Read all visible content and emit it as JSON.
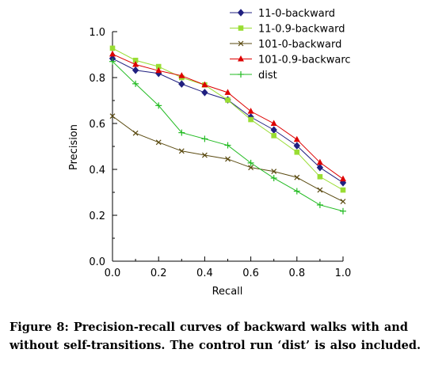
{
  "chart_data": {
    "type": "line",
    "xlabel": "Recall",
    "ylabel": "Precision",
    "xlim": [
      0,
      1
    ],
    "ylim": [
      0,
      1
    ],
    "x_ticks": [
      "0.0",
      "0.2",
      "0.4",
      "0.6",
      "0.8",
      "1.0"
    ],
    "y_ticks": [
      "0.0",
      "0.2",
      "0.4",
      "0.6",
      "0.8",
      "1.0"
    ],
    "grid": false,
    "legend_position": "top-right",
    "x": [
      0,
      0.1,
      0.2,
      0.3,
      0.4,
      0.5,
      0.6,
      0.7,
      0.8,
      0.9,
      1.0
    ],
    "series": [
      {
        "name": "11-0-backward",
        "color": "#202080",
        "marker": "diamond",
        "values": [
          0.883,
          0.832,
          0.818,
          0.772,
          0.735,
          0.703,
          0.628,
          0.572,
          0.503,
          0.408,
          0.342
        ]
      },
      {
        "name": "11-0.9-backward",
        "color": "#99dd33",
        "marker": "square",
        "values": [
          0.928,
          0.875,
          0.848,
          0.8,
          0.768,
          0.702,
          0.617,
          0.547,
          0.475,
          0.368,
          0.31
        ]
      },
      {
        "name": "101-0-backward",
        "color": "#5a4a10",
        "marker": "x",
        "values": [
          0.632,
          0.558,
          0.518,
          0.48,
          0.462,
          0.445,
          0.408,
          0.391,
          0.365,
          0.31,
          0.26
        ]
      },
      {
        "name": "101-0.9-backwarc",
        "color": "#dd0000",
        "marker": "triangle",
        "values": [
          0.902,
          0.857,
          0.83,
          0.808,
          0.768,
          0.735,
          0.653,
          0.6,
          0.53,
          0.43,
          0.358
        ]
      },
      {
        "name": "dist",
        "color": "#22bb22",
        "marker": "plus",
        "values": [
          0.87,
          0.773,
          0.678,
          0.56,
          0.533,
          0.505,
          0.428,
          0.362,
          0.305,
          0.245,
          0.218
        ]
      }
    ]
  },
  "caption": "Figure 8: Precision-recall curves of backward walks with and without self-transitions. The control run ‘dist’ is also included."
}
